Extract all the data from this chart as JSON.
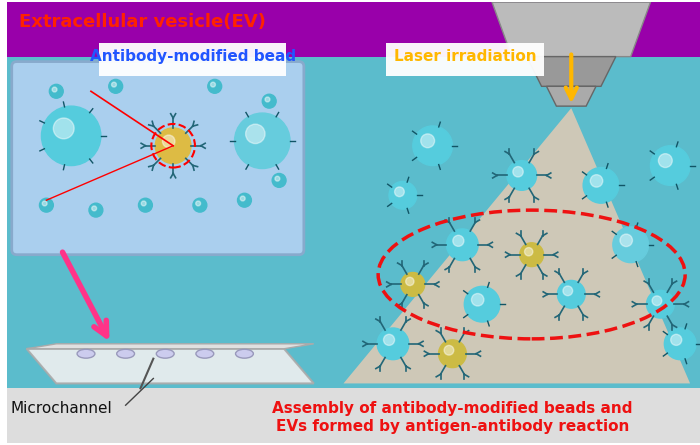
{
  "title": "",
  "bg_top_color": "#9900AA",
  "bg_main_color": "#5BBCCC",
  "label_ev": "Extracellular vesicle(EV)",
  "label_ev_color": "#FF2200",
  "label_antibody": "Antibody-modified bead",
  "label_antibody_color": "#2255FF",
  "label_laser": "Laser irradiation",
  "label_laser_color": "#FFB700",
  "label_microchannel": "Microchannel",
  "label_microchannel_color": "#111111",
  "label_assembly_line1": "Assembly of antibody-modified beads and",
  "label_assembly_line2": "EVs formed by antigen-antibody reaction",
  "label_assembly_color": "#EE1111",
  "inset_bg": "#AACFEE",
  "inset_border": "#88AACC",
  "laser_cone_color": "#F5CDB0",
  "lens_color": "#AAAAAA",
  "arrow_color": "#FFB700",
  "pink_arrow_color": "#FF3388",
  "red_dashed_color": "#EE1111",
  "bead_color": "#55CCDD",
  "figsize": [
    7.0,
    4.45
  ],
  "dpi": 100
}
